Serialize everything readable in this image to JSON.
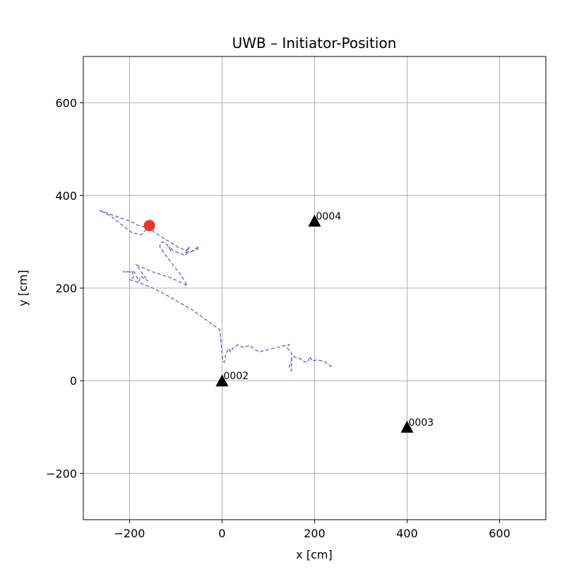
{
  "chart_data": {
    "type": "scatter",
    "title": "UWB – Initiator-Position",
    "xlabel": "x [cm]",
    "ylabel": "y [cm]",
    "xlim": [
      -300,
      700
    ],
    "ylim": [
      -300,
      700
    ],
    "x_ticks": [
      -200,
      0,
      200,
      400,
      600
    ],
    "y_ticks": [
      -200,
      0,
      200,
      400,
      600
    ],
    "x_tick_labels": [
      "−200",
      "0",
      "200",
      "400",
      "600"
    ],
    "y_tick_labels": [
      "−200",
      "0",
      "200",
      "400",
      "600"
    ],
    "grid": true,
    "anchors": [
      {
        "label": "0002",
        "x": 0,
        "y": 0
      },
      {
        "label": "0003",
        "x": 400,
        "y": -100
      },
      {
        "label": "0004",
        "x": 200,
        "y": 345
      }
    ],
    "anchor_color": "#000000",
    "trajectory": {
      "style": "dashed",
      "color": "#6666ee",
      "points": [
        [
          237,
          30
        ],
        [
          220,
          42
        ],
        [
          205,
          45
        ],
        [
          195,
          42
        ],
        [
          190,
          52
        ],
        [
          185,
          40
        ],
        [
          175,
          42
        ],
        [
          168,
          48
        ],
        [
          155,
          52
        ],
        [
          148,
          40
        ],
        [
          145,
          28
        ],
        [
          150,
          22
        ],
        [
          150,
          60
        ],
        [
          140,
          72
        ],
        [
          145,
          78
        ],
        [
          110,
          70
        ],
        [
          80,
          62
        ],
        [
          70,
          68
        ],
        [
          60,
          76
        ],
        [
          45,
          72
        ],
        [
          35,
          78
        ],
        [
          25,
          72
        ],
        [
          18,
          62
        ],
        [
          15,
          70
        ],
        [
          8,
          58
        ],
        [
          5,
          40
        ],
        [
          2,
          42
        ],
        [
          0,
          60
        ],
        [
          -5,
          110
        ],
        [
          -60,
          150
        ],
        [
          -120,
          185
        ],
        [
          -150,
          200
        ],
        [
          -180,
          212
        ],
        [
          -200,
          218
        ],
        [
          -190,
          225
        ],
        [
          -195,
          235
        ],
        [
          -215,
          235
        ],
        [
          -190,
          235
        ],
        [
          -180,
          215
        ],
        [
          -175,
          225
        ],
        [
          -160,
          215
        ],
        [
          -185,
          250
        ],
        [
          -150,
          235
        ],
        [
          -110,
          222
        ],
        [
          -75,
          205
        ],
        [
          -90,
          230
        ],
        [
          -110,
          255
        ],
        [
          -125,
          275
        ],
        [
          -135,
          290
        ],
        [
          -130,
          300
        ],
        [
          -120,
          295
        ],
        [
          -110,
          280
        ],
        [
          -115,
          290
        ],
        [
          -105,
          280
        ],
        [
          -90,
          275
        ],
        [
          -80,
          270
        ],
        [
          -75,
          280
        ],
        [
          -70,
          290
        ],
        [
          -80,
          278
        ],
        [
          -72,
          275
        ],
        [
          -65,
          280
        ],
        [
          -50,
          290
        ],
        [
          -55,
          282
        ],
        [
          -70,
          278
        ],
        [
          -95,
          288
        ],
        [
          -130,
          310
        ],
        [
          -160,
          330
        ],
        [
          -180,
          335
        ],
        [
          -200,
          345
        ],
        [
          -230,
          355
        ],
        [
          -265,
          368
        ],
        [
          -240,
          355
        ],
        [
          -215,
          335
        ],
        [
          -195,
          320
        ],
        [
          -175,
          315
        ],
        [
          -157,
          335
        ]
      ]
    },
    "current_position": {
      "x": -157,
      "y": 335,
      "color": "#ee3322"
    }
  }
}
